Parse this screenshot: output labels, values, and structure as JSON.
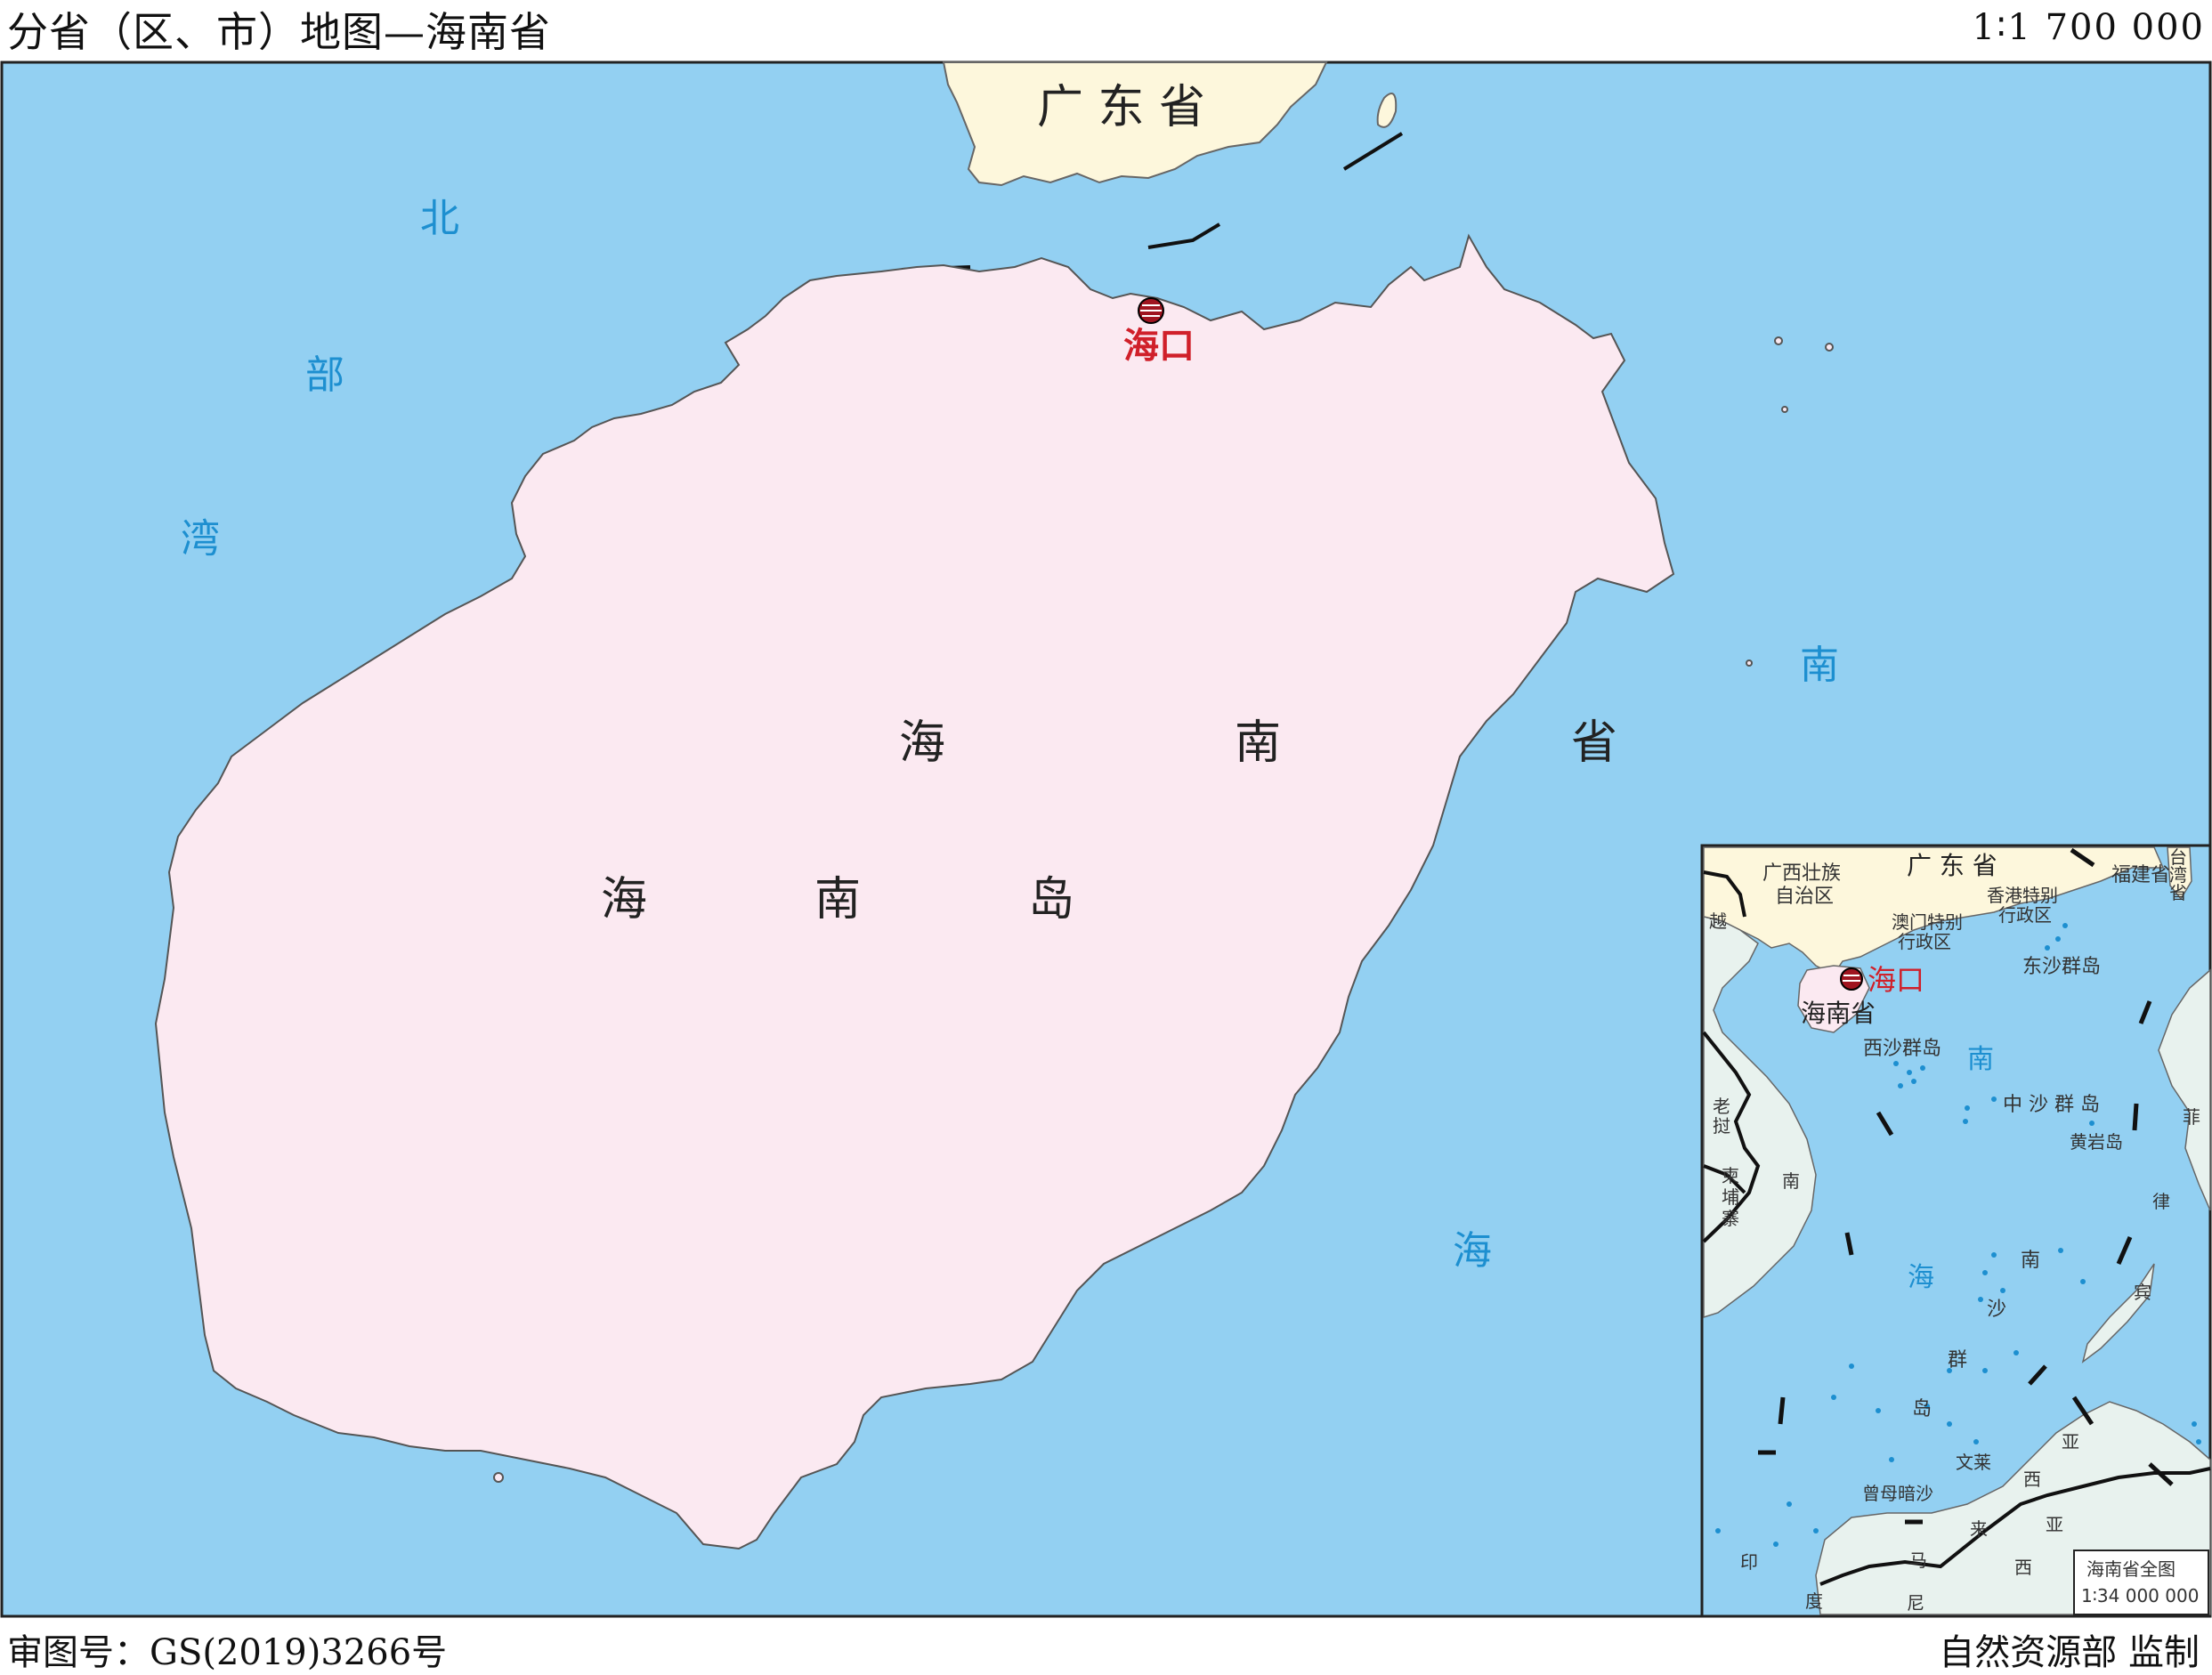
{
  "header": {
    "title": "分省（区、市）地图—海南省",
    "scale": "1∶1 700 000"
  },
  "footer": {
    "approval_number": "审图号：GS(2019)3266号",
    "supervisor": "自然资源部  监制"
  },
  "colors": {
    "sea": "#93d0f2",
    "island": "#fbe9f1",
    "mainland": "#fdf7dc",
    "neighbor_land": "#e8f2ee",
    "sea_label": "#1d8fd0",
    "capital": "#d0202a",
    "frame": "#222222"
  },
  "map": {
    "province_label": [
      "海",
      "南",
      "省"
    ],
    "island_label": [
      "海",
      "南",
      "岛"
    ],
    "mainland_label": "广 东 省",
    "capital": "海口",
    "capital_icon": "capital-star-circle-icon",
    "gulf_label": [
      "北",
      "部",
      "湾"
    ],
    "sea_label": [
      "南",
      "海"
    ]
  },
  "inset": {
    "provinces": {
      "guangxi_line1": "广西壮族",
      "guangxi_line2": "自治区",
      "guangdong": "广 东 省",
      "fujian": "福建省",
      "taiwan_line1": "台",
      "taiwan_line2": "湾",
      "taiwan_line3": "省",
      "macau_line1": "澳门特别",
      "macau_line2": "行政区",
      "hongkong_line1": "香港特别",
      "hongkong_line2": "行政区",
      "hainan": "海南省",
      "capital": "海口"
    },
    "islands": {
      "dongsha": "东沙群岛",
      "xisha": "西沙群岛",
      "zhongsha": "中 沙 群 岛",
      "huangyan": "黄岩岛",
      "zengmu": "曾母暗沙",
      "nansha": [
        "南",
        "沙",
        "群",
        "岛"
      ]
    },
    "sea": [
      "南",
      "海"
    ],
    "countries": {
      "vietnam": "越",
      "laos": [
        "老",
        "挝"
      ],
      "cambodia": [
        "柬",
        "埔",
        "寨"
      ],
      "vietnam_south": "南",
      "philippines": [
        "菲",
        "律",
        "宾"
      ],
      "brunei": "文莱",
      "malaysia_north": [
        "亚"
      ],
      "malaysia_south": [
        "马",
        "来",
        "西",
        "亚"
      ],
      "indonesia": [
        "印",
        "度",
        "尼"
      ],
      "malaysia_west": "西"
    },
    "caption": "海南省全图",
    "caption_scale": "1∶34 000 000"
  }
}
